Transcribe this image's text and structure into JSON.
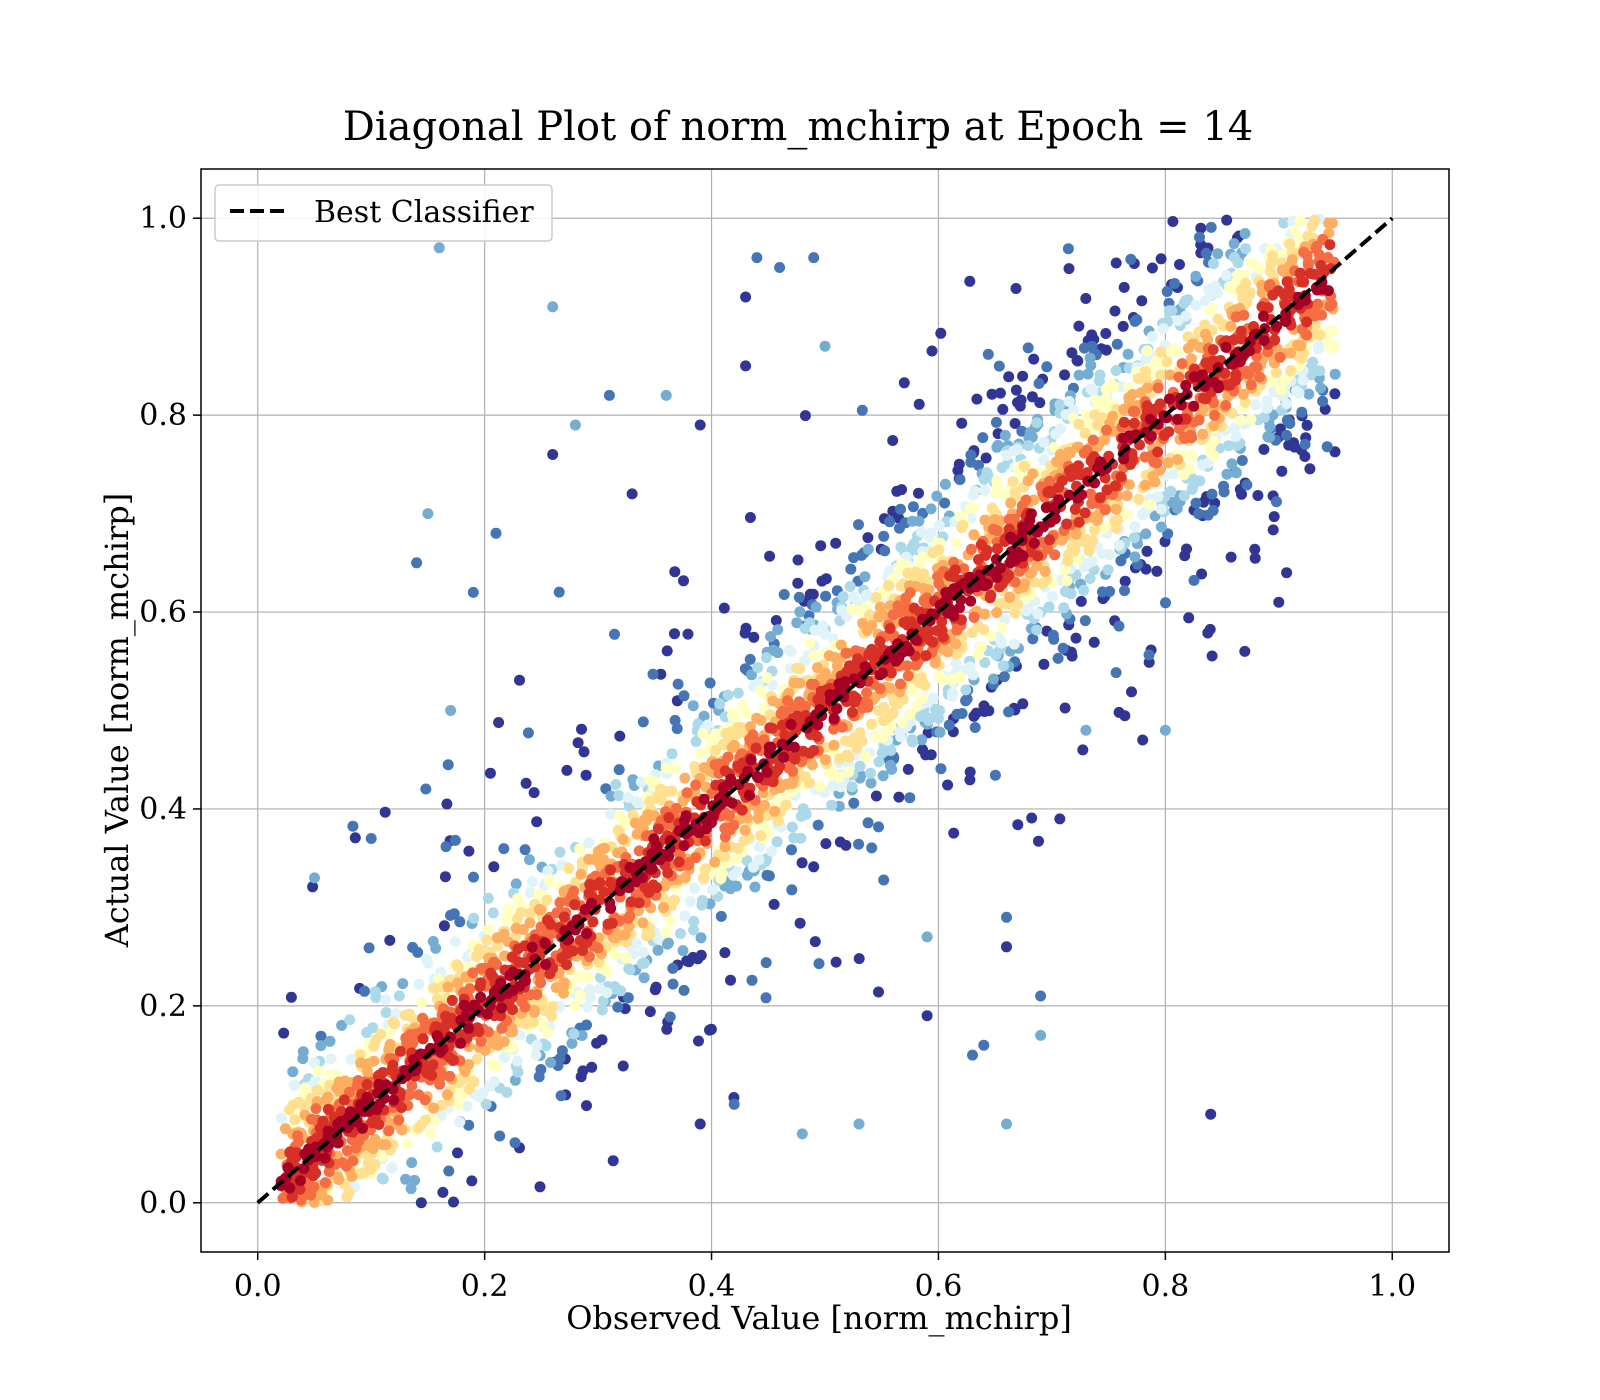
{
  "chart_data": {
    "type": "scatter",
    "title": "Diagonal Plot of norm_mchirp at Epoch = 14",
    "xlabel": "Observed Value [norm_mchirp]",
    "ylabel": "Actual Value [norm_mchirp]",
    "xlim": [
      -0.05,
      1.05
    ],
    "ylim": [
      -0.05,
      1.05
    ],
    "xticks": [
      0.0,
      0.2,
      0.4,
      0.6,
      0.8,
      1.0
    ],
    "yticks": [
      0.0,
      0.2,
      0.4,
      0.6,
      0.8,
      1.0
    ],
    "xtick_labels": [
      "0.0",
      "0.2",
      "0.4",
      "0.6",
      "0.8",
      "1.0"
    ],
    "ytick_labels": [
      "0.0",
      "0.2",
      "0.4",
      "0.6",
      "0.8",
      "1.0"
    ],
    "grid": true,
    "legend": {
      "placement": "upper-left",
      "entries": [
        "Best Classifier"
      ]
    },
    "reference_line": {
      "name": "Best Classifier",
      "style": "dashed",
      "color": "#000000",
      "x": [
        0.0,
        1.0
      ],
      "y": [
        0.0,
        1.0
      ]
    },
    "colormap": "RdYlBu_r (point density)",
    "colors": [
      "#313695",
      "#4575b4",
      "#74add1",
      "#abd9e9",
      "#e0f3f8",
      "#ffffbf",
      "#fee090",
      "#fdae61",
      "#f46d43",
      "#d73027",
      "#a50026"
    ],
    "density_band": {
      "center_slope": 1.0,
      "spread_sd": 0.055,
      "tail_sd": 0.14
    },
    "outliers": [
      [
        0.16,
        0.97
      ],
      [
        0.26,
        0.91
      ],
      [
        0.43,
        0.92
      ],
      [
        0.49,
        0.96
      ],
      [
        0.46,
        0.95
      ],
      [
        0.43,
        0.85
      ],
      [
        0.15,
        0.7
      ],
      [
        0.14,
        0.65
      ],
      [
        0.19,
        0.62
      ],
      [
        0.05,
        0.33
      ],
      [
        0.1,
        0.37
      ],
      [
        0.84,
        0.09
      ],
      [
        0.9,
        0.61
      ],
      [
        0.87,
        0.56
      ],
      [
        0.8,
        0.48
      ],
      [
        0.78,
        0.47
      ],
      [
        0.69,
        0.21
      ],
      [
        0.69,
        0.17
      ],
      [
        0.66,
        0.08
      ],
      [
        0.66,
        0.26
      ],
      [
        0.63,
        0.15
      ],
      [
        0.48,
        0.07
      ],
      [
        0.39,
        0.08
      ],
      [
        0.42,
        0.1
      ],
      [
        0.33,
        0.72
      ],
      [
        0.28,
        0.79
      ],
      [
        0.31,
        0.82
      ],
      [
        0.26,
        0.76
      ],
      [
        0.36,
        0.82
      ],
      [
        0.66,
        0.29
      ],
      [
        0.59,
        0.27
      ],
      [
        0.21,
        0.68
      ],
      [
        0.17,
        0.5
      ],
      [
        0.44,
        0.96
      ],
      [
        0.73,
        0.48
      ],
      [
        0.53,
        0.08
      ],
      [
        0.59,
        0.19
      ],
      [
        0.64,
        0.16
      ],
      [
        0.5,
        0.87
      ],
      [
        0.39,
        0.79
      ]
    ]
  }
}
